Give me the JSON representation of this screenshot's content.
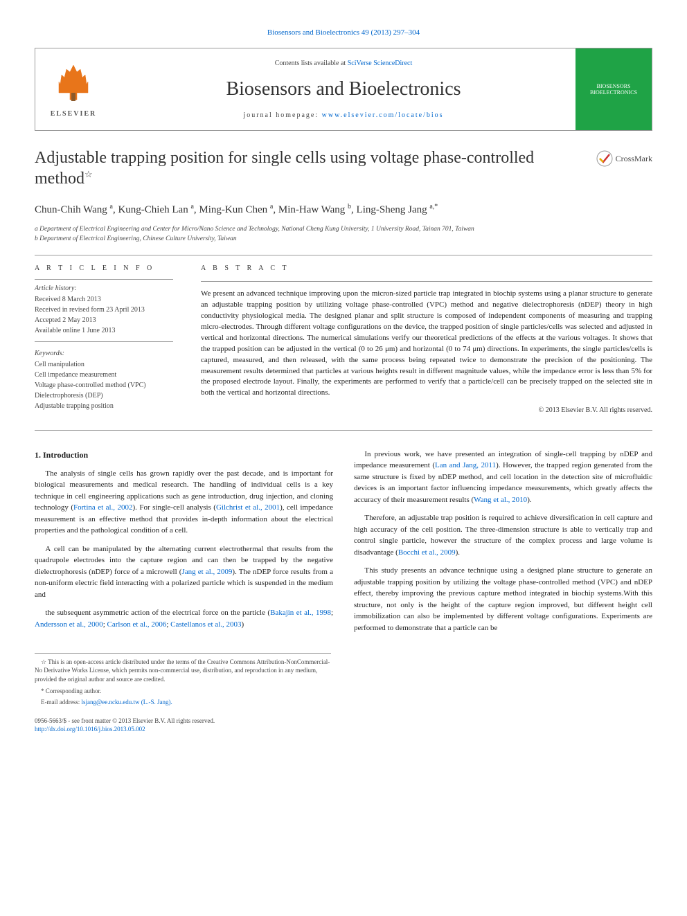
{
  "header": {
    "top_link_text": "Biosensors and Bioelectronics 49 (2013) 297–304",
    "contents_line_prefix": "Contents lists available at ",
    "contents_link": "SciVerse ScienceDirect",
    "journal_title": "Biosensors and Bioelectronics",
    "homepage_label": "journal homepage: ",
    "homepage_url": "www.elsevier.com/locate/bios",
    "elsevier_label": "ELSEVIER",
    "journal_cover_text": "BIOSENSORS\nBIOELECTRONICS"
  },
  "article": {
    "title": "Adjustable trapping position for single cells using voltage phase-controlled method",
    "title_footnote_symbol": "☆",
    "crossmark_label": "CrossMark",
    "authors_html": "Chun-Chih Wang <sup>a</sup>, Kung-Chieh Lan <sup>a</sup>, Ming-Kun Chen <sup>a</sup>, Min-Haw Wang <sup>b</sup>, Ling-Sheng Jang <sup>a,*</sup>",
    "affiliations": [
      "a Department of Electrical Engineering and Center for Micro/Nano Science and Technology, National Cheng Kung University, 1 University Road, Tainan 701, Taiwan",
      "b Department of Electrical Engineering, Chinese Culture University, Taiwan"
    ]
  },
  "article_info": {
    "heading": "A R T I C L E  I N F O",
    "history_label": "Article history:",
    "history": [
      "Received 8 March 2013",
      "Received in revised form 23 April 2013",
      "Accepted 2 May 2013",
      "Available online 1 June 2013"
    ],
    "keywords_label": "Keywords:",
    "keywords": [
      "Cell manipulation",
      "Cell impedance measurement",
      "Voltage phase-controlled method (VPC)",
      "Dielectrophoresis (DEP)",
      "Adjustable trapping position"
    ]
  },
  "abstract": {
    "heading": "A B S T R A C T",
    "text": "We present an advanced technique improving upon the micron-sized particle trap integrated in biochip systems using a planar structure to generate an adjustable trapping position by utilizing voltage phase-controlled (VPC) method and negative dielectrophoresis (nDEP) theory in high conductivity physiological media. The designed planar and split structure is composed of independent components of measuring and trapping micro-electrodes. Through different voltage configurations on the device, the trapped position of single particles/cells was selected and adjusted in vertical and horizontal directions. The numerical simulations verify our theoretical predictions of the effects at the various voltages. It shows that the trapped position can be adjusted in the vertical (0 to 26 μm) and horizontal (0 to 74 μm) directions. In experiments, the single particles/cells is captured, measured, and then released, with the same process being repeated twice to demonstrate the precision of the positioning. The measurement results determined that particles at various heights result in different magnitude values, while the impedance error is less than 5% for the proposed electrode layout. Finally, the experiments are performed to verify that a particle/cell can be precisely trapped on the selected site in both the vertical and horizontal directions.",
    "copyright": "© 2013 Elsevier B.V. All rights reserved."
  },
  "body": {
    "section_number": "1.",
    "section_title": "Introduction",
    "paragraphs": [
      "The analysis of single cells has grown rapidly over the past decade, and is important for biological measurements and medical research. The handling of individual cells is a key technique in cell engineering applications such as gene introduction, drug injection, and cloning technology (<span class='ref-link'>Fortina et al., 2002</span>). For single-cell analysis (<span class='ref-link'>Gilchrist et al., 2001</span>), cell impedance measurement is an effective method that provides in-depth information about the electrical properties and the pathological condition of a cell.",
      "A cell can be manipulated by the alternating current electrothermal that results from the quadrupole electrodes into the capture region and can then be trapped by the negative dielectrophoresis (nDEP) force of a microwell (<span class='ref-link'>Jang et al., 2009</span>). The nDEP force results from a non-uniform electric field interacting with a polarized particle which is suspended in the medium and",
      "the subsequent asymmetric action of the electrical force on the particle (<span class='ref-link'>Bakajin et al., 1998</span>; <span class='ref-link'>Andersson et al., 2000</span>; <span class='ref-link'>Carlson et al., 2006</span>; <span class='ref-link'>Castellanos et al., 2003</span>)",
      "In previous work, we have presented an integration of single-cell trapping by nDEP and impedance measurement (<span class='ref-link'>Lan and Jang, 2011</span>). However, the trapped region generated from the same structure is fixed by nDEP method, and cell location in the detection site of microfluidic devices is an important factor influencing impedance measurements, which greatly affects the accuracy of their measurement results (<span class='ref-link'>Wang et al., 2010</span>).",
      "Therefore, an adjustable trap position is required to achieve diversification in cell capture and high accuracy of the cell position. The three-dimension structure is able to vertically trap and control single particle, however the structure of the complex process and large volume is disadvantage (<span class='ref-link'>Bocchi et al., 2009</span>).",
      "This study presents an advance technique using a designed plane structure to generate an adjustable trapping position by utilizing the voltage phase-controlled method (VPC) and nDEP effect, thereby improving the previous capture method integrated in biochip systems.With this structure, not only is the height of the capture region improved, but different height cell immobilization can also be implemented by different voltage configurations. Experiments are performed to demonstrate that a particle can be"
    ]
  },
  "footnotes": {
    "open_access": "☆ This is an open-access article distributed under the terms of the Creative Commons Attribution-NonCommercial-No Derivative Works License, which permits non-commercial use, distribution, and reproduction in any medium, provided the original author and source are credited.",
    "corr_label": "* Corresponding author.",
    "email_label": "E-mail address: ",
    "email": "lsjang@ee.ncku.edu.tw (L.-S. Jang)."
  },
  "footer": {
    "issn_line": "0956-5663/$ - see front matter © 2013 Elsevier B.V. All rights reserved.",
    "doi_line": "http://dx.doi.org/10.1016/j.bios.2013.05.002"
  },
  "colors": {
    "link": "#0066cc",
    "elsevier_orange": "#e8751a",
    "journal_green": "#1fa346",
    "rule": "#999999",
    "text": "#222222"
  }
}
